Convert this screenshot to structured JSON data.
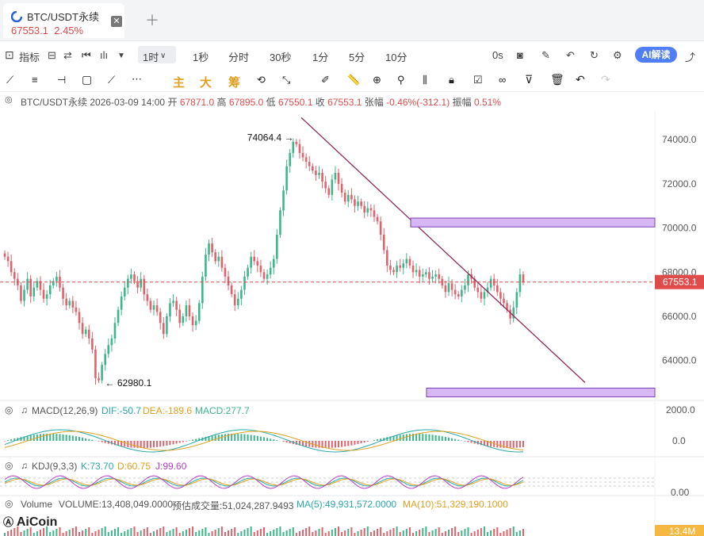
{
  "tab": {
    "symbol": "BTC/USDT永续",
    "price": "67553.1",
    "change": "2.45%",
    "close_icon": "close-icon"
  },
  "toolbar": {
    "indicators": "指标",
    "intervals": [
      "1时",
      "1秒",
      "分时",
      "30秒",
      "1分",
      "5分",
      "10分"
    ],
    "countdown": "0s",
    "ai_button": "AI解读"
  },
  "drawbar": {
    "chars": [
      "主",
      "大",
      "筹"
    ]
  },
  "ohlc": {
    "symbol": "BTC/USDT永续",
    "datetime": "2026-03-09 14:00",
    "open_label": "开",
    "open": "67871.0",
    "high_label": "高",
    "high": "67895.0",
    "low_label": "低",
    "low": "67550.1",
    "close_label": "收",
    "close": "67553.1",
    "change_label": "张幅",
    "change": "-0.46%(-312.1)",
    "amp_label": "振幅",
    "amp": "0.51%"
  },
  "macd": {
    "label": "MACD(12,26,9)",
    "dif": "DIF:-50.7",
    "dea": "DEA:-189.6",
    "macd": "MACD:277.7",
    "axis_top": "2000.0",
    "axis_zero": "0.0"
  },
  "kdj": {
    "label": "KDJ(9,3,3)",
    "k": "K:73.70",
    "d": "D:60.75",
    "j": "J:99.60",
    "axis": "0.00"
  },
  "volume": {
    "label": "Volume",
    "volume": "VOLUME:13,408,049.0000",
    "pred": "预估成交量:51,024,287.9493",
    "ma5": "MA(5):49,931,572.0000",
    "ma10": "MA(10):51,329,190.1000",
    "axis_tag": "13.4M"
  },
  "brand": "AiCoin",
  "colors": {
    "up": "#3fb58a",
    "down": "#e0626b",
    "trendline": "#8c2a5a",
    "zone_fill": "#d7b8f5",
    "zone_border": "#7a3fb8",
    "price_tag": "#e04b4b",
    "accent": "#4f7ef7"
  },
  "chart_data": {
    "type": "candlestick",
    "interval": "1h",
    "yticks": [
      64000,
      66000,
      68000,
      70000,
      72000,
      74000
    ],
    "ylim": [
      62300,
      75300
    ],
    "last_price": 67553.1,
    "high_annotation": {
      "label": "74064.4",
      "value": 74064.4
    },
    "low_annotation": {
      "label": "62980.1",
      "value": 62980.1
    },
    "close_path": [
      68700,
      68500,
      68000,
      67700,
      67400,
      66700,
      67200,
      67700,
      66900,
      67300,
      67600,
      67200,
      66800,
      67000,
      67400,
      67600,
      67800,
      67300,
      66800,
      66500,
      66700,
      66400,
      66200,
      65700,
      65200,
      65400,
      65000,
      64500,
      63200,
      63100,
      63800,
      64300,
      64700,
      65000,
      65700,
      66300,
      66900,
      67300,
      67700,
      67900,
      67600,
      67300,
      67700,
      67000,
      66700,
      66300,
      66500,
      66200,
      65700,
      65200,
      66000,
      66600,
      66700,
      66300,
      65700,
      66000,
      66500,
      66000,
      65600,
      65800,
      66600,
      67800,
      68800,
      69300,
      68900,
      68500,
      68700,
      68200,
      67800,
      67400,
      67000,
      66500,
      66800,
      67200,
      67800,
      68200,
      68700,
      68500,
      68300,
      68000,
      67700,
      67900,
      68200,
      68600,
      69700,
      70800,
      71700,
      72800,
      73400,
      73900,
      73800,
      73400,
      73200,
      73000,
      72800,
      72600,
      72400,
      72500,
      72100,
      71800,
      71500,
      72200,
      72500,
      72000,
      71600,
      71200,
      71500,
      71300,
      71000,
      71200,
      71000,
      70700,
      70900,
      70800,
      70500,
      70300,
      69700,
      69000,
      68300,
      68100,
      68000,
      68300,
      68200,
      68400,
      68600,
      68300,
      68000,
      68100,
      67800,
      67900,
      68000,
      67700,
      67800,
      67900,
      67700,
      67400,
      67100,
      67500,
      67200,
      67000,
      66900,
      67200,
      67400,
      67900,
      67700,
      67300,
      67100,
      66800,
      67100,
      67300,
      67700,
      67400,
      67100,
      66800,
      66600,
      66300,
      65900,
      66400,
      67100,
      67900,
      67553
    ]
  }
}
